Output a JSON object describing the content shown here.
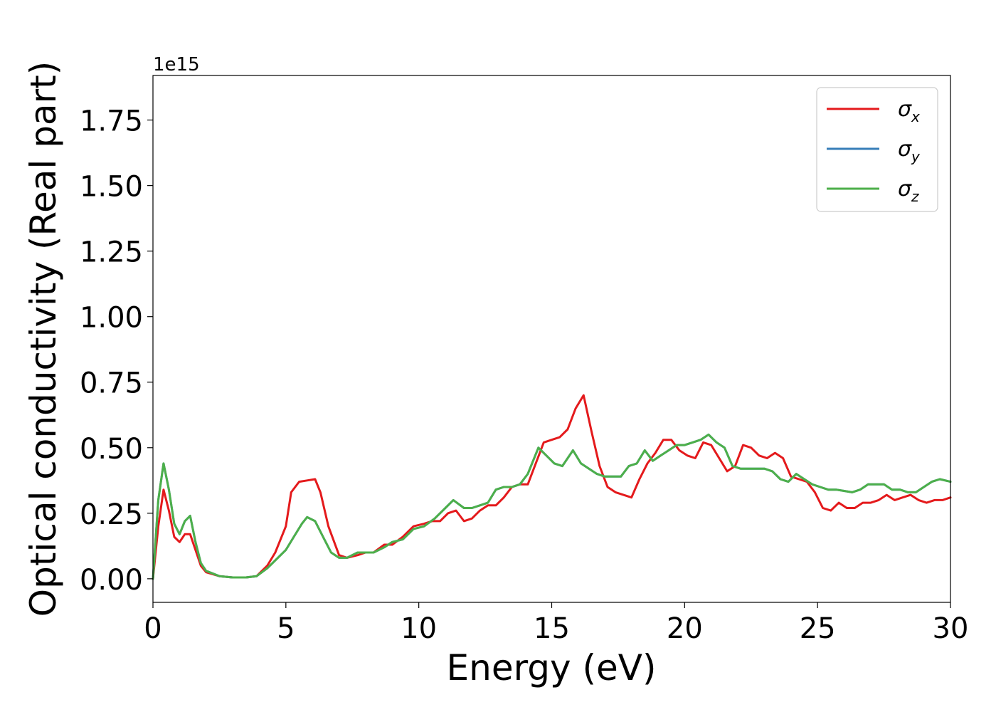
{
  "chart_data": {
    "type": "line",
    "xlabel": "Energy (eV)",
    "ylabel": "Optical conductivity (Real part)",
    "y_offset_label": "1e15",
    "xlim": [
      0,
      30
    ],
    "ylim": [
      -0.09,
      1.92
    ],
    "x_ticks": [
      0,
      5,
      10,
      15,
      20,
      25,
      30
    ],
    "x_tick_labels": [
      "0",
      "5",
      "10",
      "15",
      "20",
      "25",
      "30"
    ],
    "y_ticks": [
      0,
      0.25,
      0.5,
      0.75,
      1.0,
      1.25,
      1.5,
      1.75
    ],
    "y_tick_labels": [
      "0.00",
      "0.25",
      "0.50",
      "0.75",
      "1.00",
      "1.25",
      "1.50",
      "1.75"
    ],
    "grid": false,
    "legend_position": "top-right",
    "series": [
      {
        "name": "σx",
        "symbol": "σ",
        "subscript": "x",
        "color": "#e41a1c",
        "x": [
          0,
          0.2,
          0.4,
          0.6,
          0.8,
          1.0,
          1.2,
          1.4,
          1.6,
          1.8,
          2.0,
          2.5,
          3.0,
          3.5,
          3.9,
          4.3,
          4.6,
          5.0,
          5.2,
          5.5,
          5.8,
          6.1,
          6.3,
          6.6,
          7.0,
          7.3,
          7.7,
          8.0,
          8.3,
          8.7,
          9.0,
          9.4,
          9.8,
          10.2,
          10.5,
          10.8,
          11.1,
          11.4,
          11.7,
          12.0,
          12.3,
          12.6,
          12.9,
          13.2,
          13.5,
          13.8,
          14.1,
          14.4,
          14.7,
          15.0,
          15.3,
          15.6,
          15.9,
          16.2,
          16.5,
          16.8,
          17.1,
          17.4,
          17.7,
          18.0,
          18.3,
          18.6,
          18.9,
          19.2,
          19.5,
          19.8,
          20.1,
          20.4,
          20.7,
          21.0,
          21.3,
          21.6,
          21.9,
          22.2,
          22.5,
          22.8,
          23.1,
          23.4,
          23.7,
          24.0,
          24.3,
          24.6,
          24.9,
          25.2,
          25.5,
          25.8,
          26.1,
          26.4,
          26.7,
          27.0,
          27.3,
          27.6,
          27.9,
          28.2,
          28.5,
          28.8,
          29.1,
          29.4,
          29.7,
          30.0
        ],
        "values": [
          0.0,
          0.2,
          0.34,
          0.26,
          0.16,
          0.14,
          0.17,
          0.17,
          0.11,
          0.05,
          0.025,
          0.01,
          0.005,
          0.005,
          0.01,
          0.05,
          0.1,
          0.2,
          0.33,
          0.37,
          0.375,
          0.38,
          0.33,
          0.2,
          0.09,
          0.08,
          0.09,
          0.1,
          0.1,
          0.13,
          0.13,
          0.16,
          0.2,
          0.21,
          0.22,
          0.22,
          0.25,
          0.26,
          0.22,
          0.23,
          0.26,
          0.28,
          0.28,
          0.31,
          0.35,
          0.36,
          0.36,
          0.44,
          0.52,
          0.53,
          0.54,
          0.57,
          0.65,
          0.7,
          0.56,
          0.43,
          0.35,
          0.33,
          0.32,
          0.31,
          0.38,
          0.44,
          0.48,
          0.53,
          0.53,
          0.49,
          0.47,
          0.46,
          0.52,
          0.51,
          0.46,
          0.41,
          0.43,
          0.51,
          0.5,
          0.47,
          0.46,
          0.48,
          0.46,
          0.39,
          0.38,
          0.37,
          0.33,
          0.27,
          0.26,
          0.29,
          0.27,
          0.27,
          0.29,
          0.29,
          0.3,
          0.32,
          0.3,
          0.31,
          0.32,
          0.3,
          0.29,
          0.3,
          0.3,
          0.31
        ]
      },
      {
        "name": "σy",
        "symbol": "σ",
        "subscript": "y",
        "color": "#377eb8",
        "x": [
          0,
          0.2,
          0.4,
          0.6,
          0.8,
          1.0,
          1.2,
          1.4,
          1.6,
          1.8,
          2.0,
          2.5,
          3.0,
          3.5,
          3.9,
          4.3,
          4.6,
          5.0,
          5.3,
          5.6,
          5.8,
          6.1,
          6.4,
          6.7,
          7.0,
          7.3,
          7.7,
          8.0,
          8.3,
          8.7,
          9.0,
          9.4,
          9.8,
          10.2,
          10.6,
          11.0,
          11.3,
          11.7,
          12.0,
          12.3,
          12.6,
          12.9,
          13.2,
          13.5,
          13.8,
          14.1,
          14.5,
          14.8,
          15.1,
          15.4,
          15.8,
          16.1,
          16.4,
          16.7,
          17.0,
          17.3,
          17.6,
          17.9,
          18.2,
          18.5,
          18.8,
          19.1,
          19.4,
          19.7,
          20.0,
          20.3,
          20.6,
          20.9,
          21.2,
          21.5,
          21.8,
          22.1,
          22.4,
          22.7,
          23.0,
          23.3,
          23.6,
          23.9,
          24.2,
          24.5,
          24.8,
          25.1,
          25.4,
          25.7,
          26.0,
          26.3,
          26.6,
          26.9,
          27.2,
          27.5,
          27.8,
          28.1,
          28.4,
          28.7,
          29.0,
          29.3,
          29.6,
          30.0
        ],
        "values": [
          0.0,
          0.3,
          0.44,
          0.34,
          0.21,
          0.17,
          0.22,
          0.24,
          0.14,
          0.06,
          0.03,
          0.01,
          0.005,
          0.005,
          0.01,
          0.04,
          0.07,
          0.11,
          0.16,
          0.21,
          0.235,
          0.22,
          0.16,
          0.1,
          0.08,
          0.08,
          0.1,
          0.1,
          0.1,
          0.12,
          0.14,
          0.15,
          0.19,
          0.2,
          0.23,
          0.27,
          0.3,
          0.27,
          0.27,
          0.28,
          0.29,
          0.34,
          0.35,
          0.35,
          0.36,
          0.4,
          0.5,
          0.47,
          0.44,
          0.43,
          0.49,
          0.44,
          0.42,
          0.4,
          0.39,
          0.39,
          0.39,
          0.43,
          0.44,
          0.49,
          0.45,
          0.47,
          0.49,
          0.51,
          0.51,
          0.52,
          0.53,
          0.55,
          0.52,
          0.5,
          0.43,
          0.42,
          0.42,
          0.42,
          0.42,
          0.41,
          0.38,
          0.37,
          0.4,
          0.38,
          0.36,
          0.35,
          0.34,
          0.34,
          0.335,
          0.33,
          0.34,
          0.36,
          0.36,
          0.36,
          0.34,
          0.34,
          0.33,
          0.33,
          0.35,
          0.37,
          0.38,
          0.37
        ]
      },
      {
        "name": "σz",
        "symbol": "σ",
        "subscript": "z",
        "color": "#4daf4a",
        "x": [
          0,
          0.2,
          0.4,
          0.6,
          0.8,
          1.0,
          1.2,
          1.4,
          1.6,
          1.8,
          2.0,
          2.5,
          3.0,
          3.5,
          3.9,
          4.3,
          4.6,
          5.0,
          5.3,
          5.6,
          5.8,
          6.1,
          6.4,
          6.7,
          7.0,
          7.3,
          7.7,
          8.0,
          8.3,
          8.7,
          9.0,
          9.4,
          9.8,
          10.2,
          10.6,
          11.0,
          11.3,
          11.7,
          12.0,
          12.3,
          12.6,
          12.9,
          13.2,
          13.5,
          13.8,
          14.1,
          14.5,
          14.8,
          15.1,
          15.4,
          15.8,
          16.1,
          16.4,
          16.7,
          17.0,
          17.3,
          17.6,
          17.9,
          18.2,
          18.5,
          18.8,
          19.1,
          19.4,
          19.7,
          20.0,
          20.3,
          20.6,
          20.9,
          21.2,
          21.5,
          21.8,
          22.1,
          22.4,
          22.7,
          23.0,
          23.3,
          23.6,
          23.9,
          24.2,
          24.5,
          24.8,
          25.1,
          25.4,
          25.7,
          26.0,
          26.3,
          26.6,
          26.9,
          27.2,
          27.5,
          27.8,
          28.1,
          28.4,
          28.7,
          29.0,
          29.3,
          29.6,
          30.0
        ],
        "values": [
          0.0,
          0.3,
          0.44,
          0.34,
          0.21,
          0.17,
          0.22,
          0.24,
          0.14,
          0.06,
          0.03,
          0.01,
          0.005,
          0.005,
          0.01,
          0.04,
          0.07,
          0.11,
          0.16,
          0.21,
          0.235,
          0.22,
          0.16,
          0.1,
          0.08,
          0.08,
          0.1,
          0.1,
          0.1,
          0.12,
          0.14,
          0.15,
          0.19,
          0.2,
          0.23,
          0.27,
          0.3,
          0.27,
          0.27,
          0.28,
          0.29,
          0.34,
          0.35,
          0.35,
          0.36,
          0.4,
          0.5,
          0.47,
          0.44,
          0.43,
          0.49,
          0.44,
          0.42,
          0.4,
          0.39,
          0.39,
          0.39,
          0.43,
          0.44,
          0.49,
          0.45,
          0.47,
          0.49,
          0.51,
          0.51,
          0.52,
          0.53,
          0.55,
          0.52,
          0.5,
          0.43,
          0.42,
          0.42,
          0.42,
          0.42,
          0.41,
          0.38,
          0.37,
          0.4,
          0.38,
          0.36,
          0.35,
          0.34,
          0.34,
          0.335,
          0.33,
          0.34,
          0.36,
          0.36,
          0.36,
          0.34,
          0.34,
          0.33,
          0.33,
          0.35,
          0.37,
          0.38,
          0.37
        ]
      }
    ]
  }
}
